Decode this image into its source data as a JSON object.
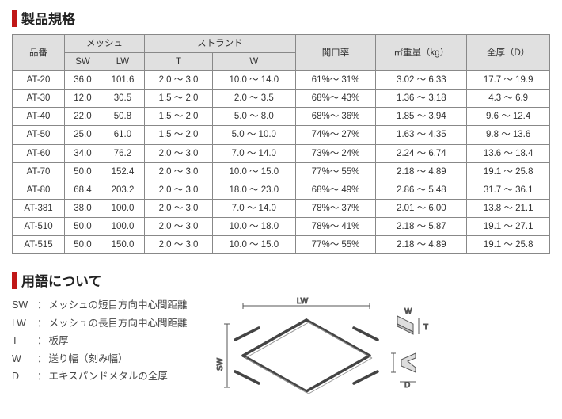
{
  "section1_title": "製品規格",
  "section2_title": "用語について",
  "table": {
    "headers": {
      "part": "品番",
      "mesh": "メッシュ",
      "sw": "SW",
      "lw": "LW",
      "strand": "ストランド",
      "t": "T",
      "w": "W",
      "open_rate": "開口率",
      "weight": "㎡重量（kg）",
      "thickness": "全厚（D）"
    },
    "rows": [
      {
        "part": "AT-20",
        "sw": "36.0",
        "lw": "101.6",
        "t": "2.0 ～ 3.0",
        "w": "10.0 ～ 14.0",
        "open": "61%～ 31%",
        "wt": "3.02 ～ 6.33",
        "d": "17.7 ～ 19.9"
      },
      {
        "part": "AT-30",
        "sw": "12.0",
        "lw": "30.5",
        "t": "1.5 ～ 2.0",
        "w": "2.0 ～ 3.5",
        "open": "68%～ 43%",
        "wt": "1.36 ～ 3.18",
        "d": "4.3 ～ 6.9"
      },
      {
        "part": "AT-40",
        "sw": "22.0",
        "lw": "50.8",
        "t": "1.5 ～ 2.0",
        "w": "5.0 ～ 8.0",
        "open": "68%～ 36%",
        "wt": "1.85 ～ 3.94",
        "d": "9.6 ～ 12.4"
      },
      {
        "part": "AT-50",
        "sw": "25.0",
        "lw": "61.0",
        "t": "1.5 ～ 2.0",
        "w": "5.0 ～ 10.0",
        "open": "74%～ 27%",
        "wt": "1.63 ～ 4.35",
        "d": "9.8 ～ 13.6"
      },
      {
        "part": "AT-60",
        "sw": "34.0",
        "lw": "76.2",
        "t": "2.0 ～ 3.0",
        "w": "7.0 ～ 14.0",
        "open": "73%～ 24%",
        "wt": "2.24 ～ 6.74",
        "d": "13.6 ～ 18.4"
      },
      {
        "part": "AT-70",
        "sw": "50.0",
        "lw": "152.4",
        "t": "2.0 ～ 3.0",
        "w": "10.0 ～ 15.0",
        "open": "77%～ 55%",
        "wt": "2.18 ～ 4.89",
        "d": "19.1 ～ 25.8"
      },
      {
        "part": "AT-80",
        "sw": "68.4",
        "lw": "203.2",
        "t": "2.0 ～ 3.0",
        "w": "18.0 ～ 23.0",
        "open": "68%～ 49%",
        "wt": "2.86 ～ 5.48",
        "d": "31.7 ～ 36.1"
      },
      {
        "part": "AT-381",
        "sw": "38.0",
        "lw": "100.0",
        "t": "2.0 ～ 3.0",
        "w": "7.0 ～ 14.0",
        "open": "78%～ 37%",
        "wt": "2.01 ～ 6.00",
        "d": "13.8 ～ 21.1"
      },
      {
        "part": "AT-510",
        "sw": "50.0",
        "lw": "100.0",
        "t": "2.0 ～ 3.0",
        "w": "10.0 ～ 18.0",
        "open": "78%～ 41%",
        "wt": "2.18 ～ 5.87",
        "d": "19.1 ～ 27.1"
      },
      {
        "part": "AT-515",
        "sw": "50.0",
        "lw": "150.0",
        "t": "2.0 ～ 3.0",
        "w": "10.0 ～ 15.0",
        "open": "77%～ 55%",
        "wt": "2.18 ～ 4.89",
        "d": "19.1 ～ 25.8"
      }
    ]
  },
  "terms": [
    {
      "key": "SW",
      "desc": "メッシュの短目方向中心間距離"
    },
    {
      "key": "LW",
      "desc": "メッシュの長目方向中心間距離"
    },
    {
      "key": "T",
      "desc": "板厚"
    },
    {
      "key": "W",
      "desc": "送り幅（刻み幅）"
    },
    {
      "key": "D",
      "desc": "エキスパンドメタルの全厚"
    }
  ],
  "diagram_labels": {
    "lw": "LW",
    "sw": "SW",
    "w": "W",
    "t": "T",
    "d": "D"
  },
  "colors": {
    "accent": "#c01717",
    "header_bg": "#e0e0e0",
    "border": "#888888",
    "text": "#333333"
  }
}
